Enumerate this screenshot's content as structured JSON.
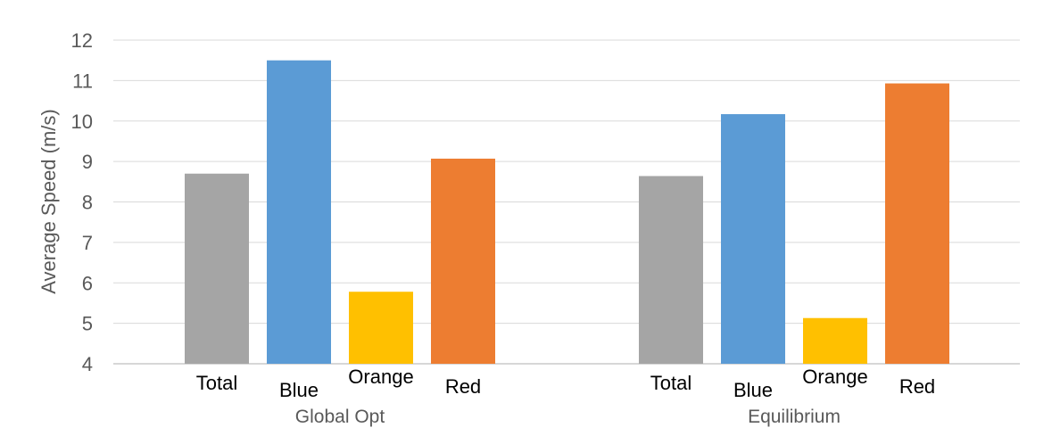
{
  "chart_data": {
    "type": "bar",
    "ylabel": "Average Speed (m/s)",
    "xlabel": "",
    "ylim": [
      4,
      12
    ],
    "yticks": [
      4,
      5,
      6,
      7,
      8,
      9,
      10,
      11,
      12
    ],
    "grid": true,
    "legend": "none",
    "groups": [
      {
        "name": "Global Opt",
        "bars": [
          {
            "label": "Total",
            "value": 8.7,
            "color": "#a5a5a5"
          },
          {
            "label": "Blue",
            "value": 11.5,
            "color": "#5b9bd5"
          },
          {
            "label": "Orange",
            "value": 5.78,
            "color": "#ffc000"
          },
          {
            "label": "Red",
            "value": 9.07,
            "color": "#ed7d31"
          }
        ]
      },
      {
        "name": "Equilibrium",
        "bars": [
          {
            "label": "Total",
            "value": 8.64,
            "color": "#a5a5a5"
          },
          {
            "label": "Blue",
            "value": 10.17,
            "color": "#5b9bd5"
          },
          {
            "label": "Orange",
            "value": 5.13,
            "color": "#ffc000"
          },
          {
            "label": "Red",
            "value": 10.93,
            "color": "#ed7d31"
          }
        ]
      }
    ]
  }
}
